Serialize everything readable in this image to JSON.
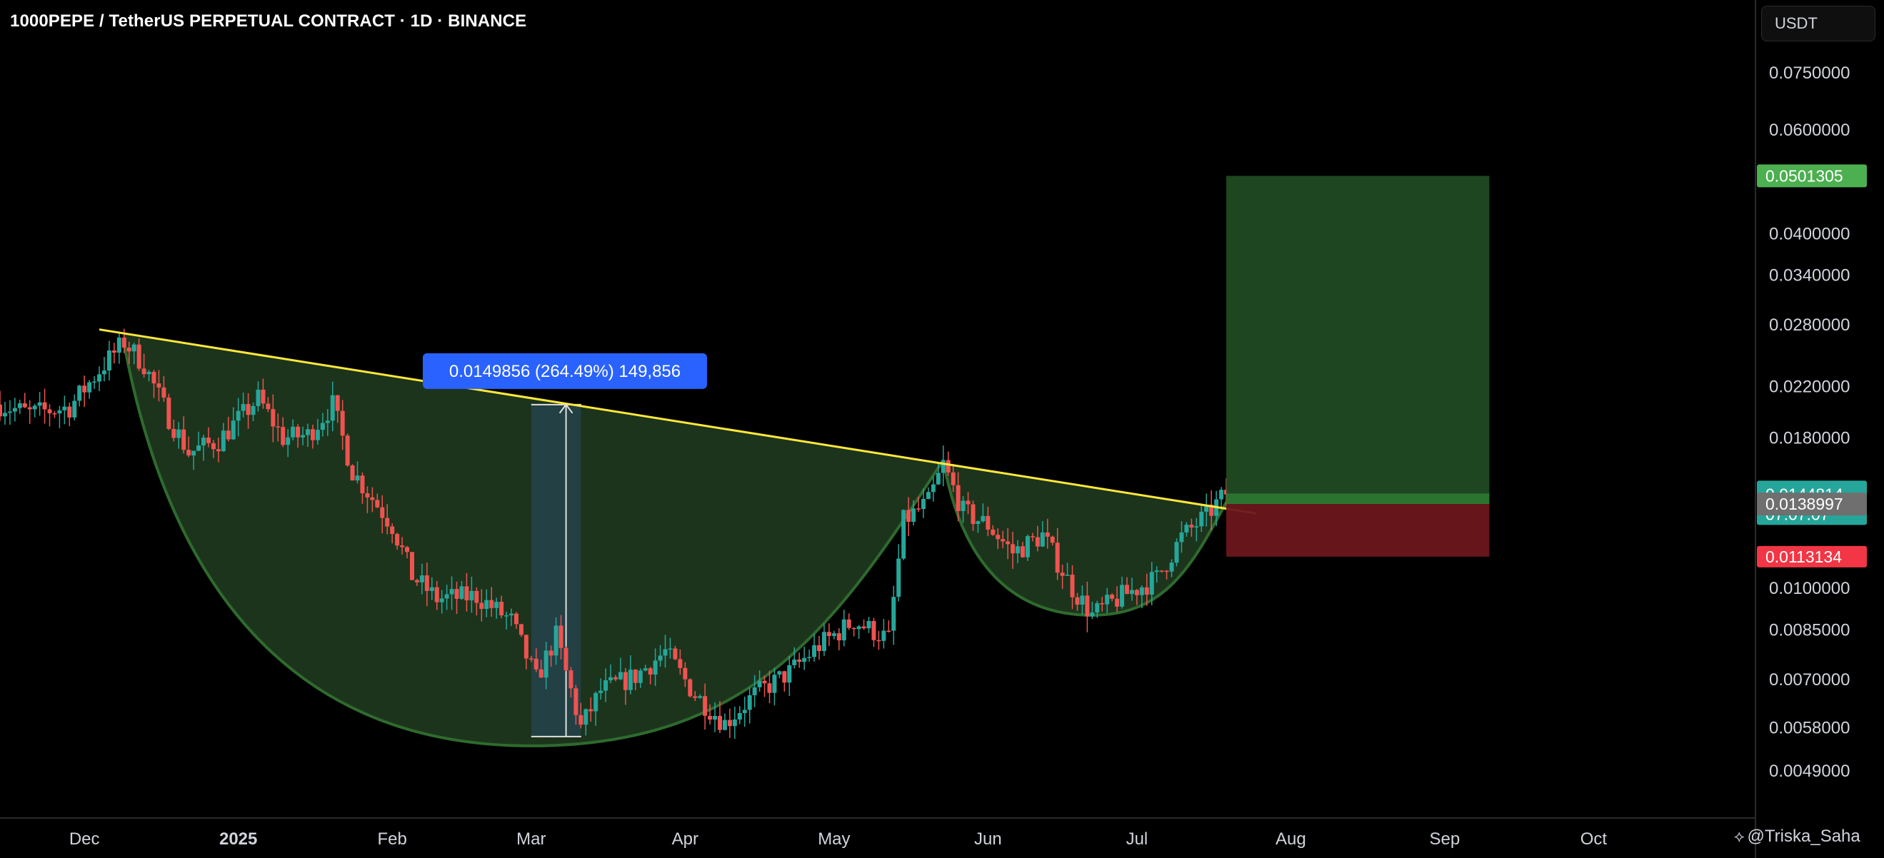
{
  "header": {
    "title": "1000PEPE / TetherUS PERPETUAL CONTRACT · 1D · BINANCE"
  },
  "scale": {
    "unit_label": "USDT"
  },
  "watermark": {
    "author": "@Triska_Saha"
  },
  "colors": {
    "background": "#000000",
    "candle_up": "#26a69a",
    "candle_down": "#ef5350",
    "trendline": "#ffe83b",
    "cup_fill": "#1f3a1f",
    "cup_stroke": "#2e6b2e",
    "target_zone": "#1f4a23",
    "stop_zone": "#6b161c",
    "target_tag": "#4caf50",
    "stop_tag": "#f23645",
    "current_tag": "#26a69a",
    "entry_tag": "#6f6f6f",
    "measure_box": "#2962ff"
  },
  "chart_data": {
    "type": "candlestick",
    "title": "1000PEPE / TetherUS PERPETUAL CONTRACT · 1D · BINANCE",
    "y_scale": "log",
    "ylim": [
      0.0042,
      0.082
    ],
    "y_ticks": [
      "0.0750000",
      "0.0600000",
      "0.0400000",
      "0.0340000",
      "0.0280000",
      "0.0220000",
      "0.0180000",
      "0.0100000",
      "0.0085000",
      "0.0070000",
      "0.0058000",
      "0.0049000"
    ],
    "x_ticks": [
      "Dec",
      "2025",
      "Feb",
      "Mar",
      "Apr",
      "May",
      "Jun",
      "Jul",
      "Aug",
      "Sep",
      "Oct"
    ],
    "x_range": [
      "2024-11-14",
      "2025-10-31"
    ],
    "price_path": [
      [
        "2024-11-14",
        0.0205
      ],
      [
        "2024-11-20",
        0.0198
      ],
      [
        "2024-11-28",
        0.0203
      ],
      [
        "2024-12-05",
        0.024
      ],
      [
        "2024-12-09",
        0.0262
      ],
      [
        "2024-12-13",
        0.024
      ],
      [
        "2024-12-18",
        0.0195
      ],
      [
        "2024-12-22",
        0.017
      ],
      [
        "2024-12-28",
        0.0178
      ],
      [
        "2025-01-05",
        0.021
      ],
      [
        "2025-01-10",
        0.018
      ],
      [
        "2025-01-15",
        0.0182
      ],
      [
        "2025-01-20",
        0.0205
      ],
      [
        "2025-01-24",
        0.0158
      ],
      [
        "2025-02-01",
        0.0128
      ],
      [
        "2025-02-05",
        0.0105
      ],
      [
        "2025-02-10",
        0.0096
      ],
      [
        "2025-02-18",
        0.0097
      ],
      [
        "2025-02-25",
        0.0088
      ],
      [
        "2025-03-02",
        0.007
      ],
      [
        "2025-03-06",
        0.0083
      ],
      [
        "2025-03-11",
        0.0058
      ],
      [
        "2025-03-15",
        0.0067
      ],
      [
        "2025-03-22",
        0.0071
      ],
      [
        "2025-03-28",
        0.0078
      ],
      [
        "2025-04-03",
        0.0066
      ],
      [
        "2025-04-09",
        0.0059
      ],
      [
        "2025-04-15",
        0.0066
      ],
      [
        "2025-04-22",
        0.0072
      ],
      [
        "2025-04-28",
        0.008
      ],
      [
        "2025-05-05",
        0.0088
      ],
      [
        "2025-05-12",
        0.0082
      ],
      [
        "2025-05-15",
        0.013
      ],
      [
        "2025-05-20",
        0.014
      ],
      [
        "2025-05-23",
        0.0162
      ],
      [
        "2025-05-27",
        0.0135
      ],
      [
        "2025-06-01",
        0.0128
      ],
      [
        "2025-06-06",
        0.0115
      ],
      [
        "2025-06-12",
        0.0123
      ],
      [
        "2025-06-18",
        0.01
      ],
      [
        "2025-06-22",
        0.009
      ],
      [
        "2025-06-28",
        0.0097
      ],
      [
        "2025-07-05",
        0.0104
      ],
      [
        "2025-07-10",
        0.0122
      ],
      [
        "2025-07-15",
        0.0133
      ],
      [
        "2025-07-19",
        0.0145
      ]
    ],
    "trendline": {
      "start": [
        "2024-12-04",
        0.0275
      ],
      "end": [
        "2025-07-25",
        0.0134
      ]
    },
    "cup": {
      "left_rim": [
        "2024-12-09",
        0.026
      ],
      "bottom": [
        "2025-03-01",
        0.0054
      ],
      "right_rim": [
        "2025-05-23",
        0.0165
      ]
    },
    "handle": {
      "left_rim": [
        "2025-05-23",
        0.0165
      ],
      "bottom": [
        "2025-06-22",
        0.009
      ],
      "right_rim": [
        "2025-07-19",
        0.014
      ]
    },
    "measurement": {
      "label": "0.0149856 (264.49%) 149,856",
      "x_start": "2025-03-01",
      "x_end": "2025-03-11",
      "from_price": 0.0056,
      "to_price": 0.0205
    },
    "position": {
      "x_start": "2025-07-19",
      "x_end": "2025-09-10",
      "target": 0.0501305,
      "entry": 0.0138997,
      "stop": 0.0113134,
      "target_label": "0.0501305",
      "entry_label": "0.0138997",
      "stop_label": "0.0113134"
    },
    "current_price": {
      "value": 0.0144814,
      "label": "0.0144814",
      "countdown": "07:07:07"
    }
  }
}
